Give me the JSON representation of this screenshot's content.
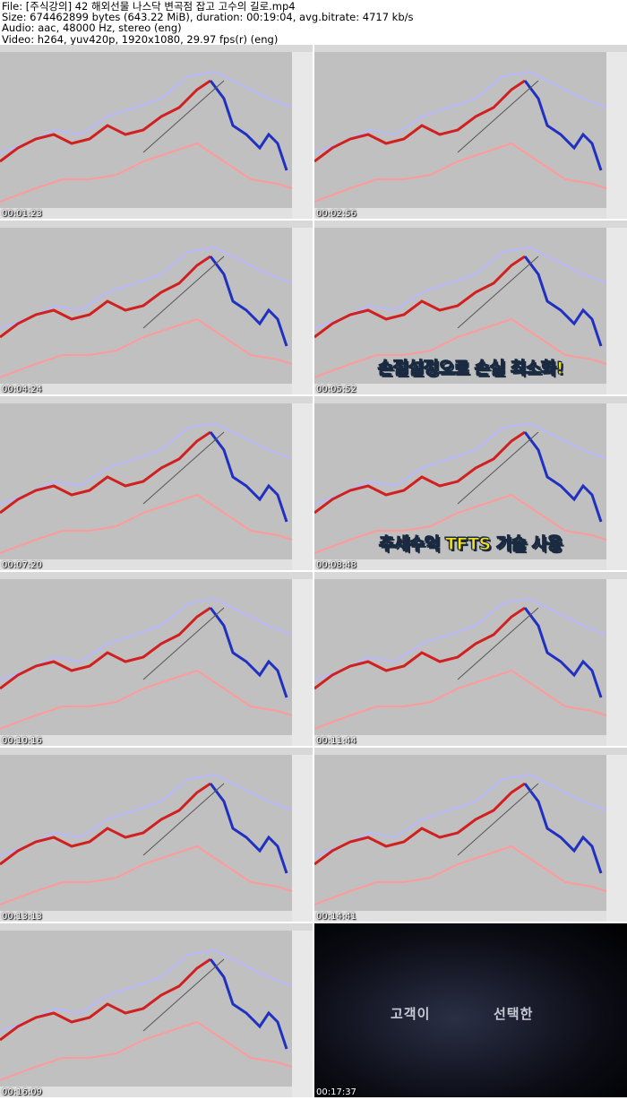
{
  "header": {
    "lines": [
      "File: [주식강의] 42 해외선물 나스닥 변곡점 잡고 고수의 길로.mp4",
      "Size: 674462899 bytes (643.22 MiB), duration: 00:19:04, avg.bitrate: 4717 kb/s",
      "Audio: aac, 48000 Hz, stereo (eng)",
      "Video: h264, yuv420p, 1920x1080, 29.97 fps(r) (eng)"
    ]
  },
  "thumbnails": [
    {
      "timestamp": "00:01:23"
    },
    {
      "timestamp": "00:02:56"
    },
    {
      "timestamp": "00:04:24"
    },
    {
      "timestamp": "00:05:52",
      "caption": [
        {
          "text": "손절설정",
          "highlight": true
        },
        {
          "text": "으로 손실 ",
          "highlight": false
        },
        {
          "text": "최소화!",
          "highlight": true
        }
      ]
    },
    {
      "timestamp": "00:07:20"
    },
    {
      "timestamp": "00:08:48",
      "caption": [
        {
          "text": "추세수익 ",
          "highlight": false
        },
        {
          "text": "TFTS",
          "highlight": true
        },
        {
          "text": " 기술 사용",
          "highlight": false
        }
      ]
    },
    {
      "timestamp": "00:10:16"
    },
    {
      "timestamp": "00:11:44"
    },
    {
      "timestamp": "00:13:13"
    },
    {
      "timestamp": "00:14:41"
    },
    {
      "timestamp": "00:16:09"
    },
    {
      "timestamp": "00:17:37",
      "dark": true,
      "intro": [
        "고객이",
        "선택한"
      ]
    }
  ]
}
